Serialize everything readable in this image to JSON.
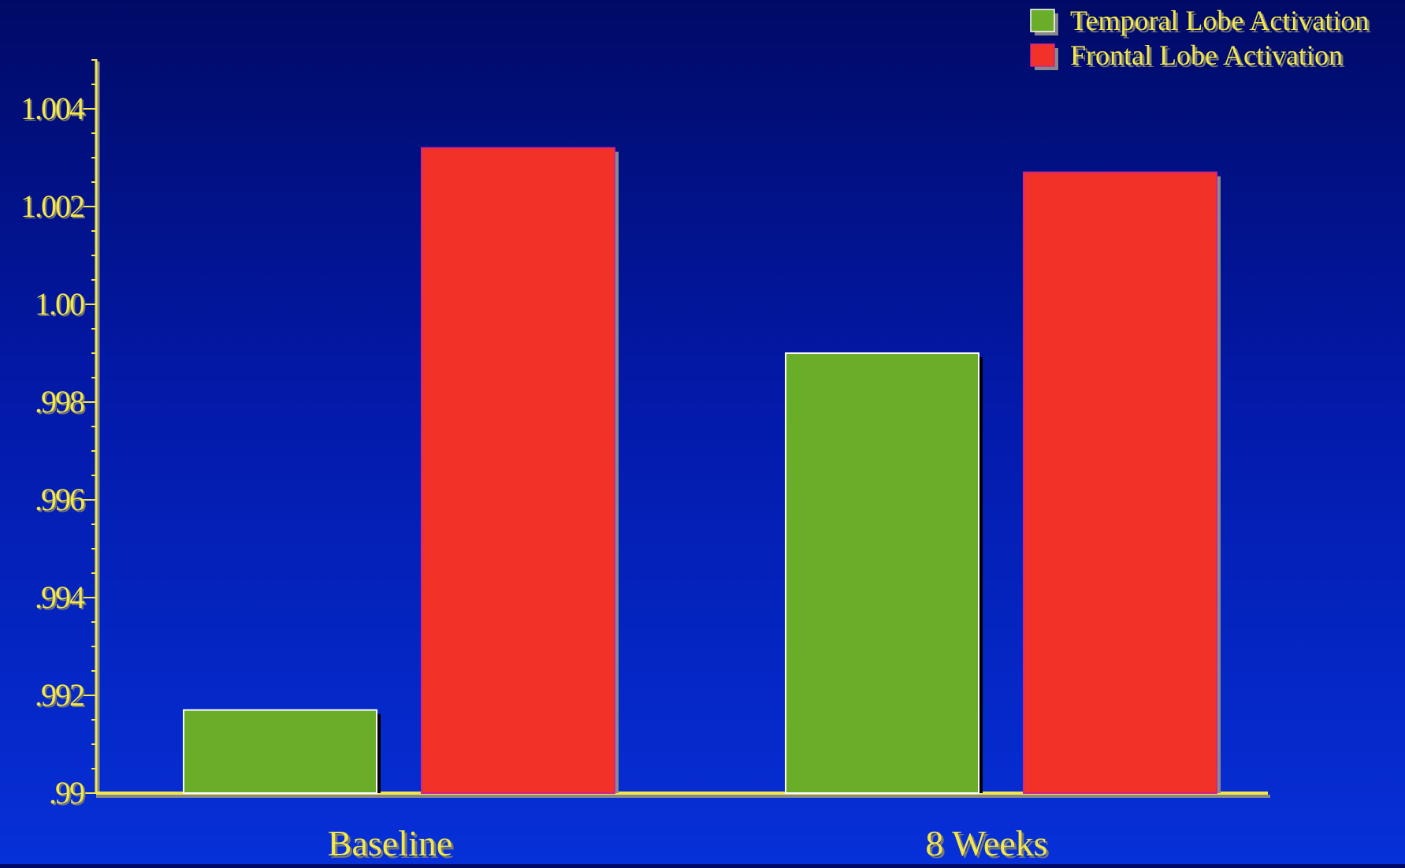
{
  "chart_data": {
    "type": "bar",
    "title": "",
    "xlabel": "",
    "ylabel": "",
    "categories": [
      "Baseline",
      "8 Weeks"
    ],
    "series": [
      {
        "name": "Temporal Lobe Activation",
        "color": "#6aad28",
        "values": [
          0.9917,
          0.999
        ]
      },
      {
        "name": "Frontal Lobe Activation",
        "color": "#f23128",
        "values": [
          1.0032,
          1.0027
        ]
      }
    ],
    "ylim": [
      0.99,
      1.005
    ],
    "y_ticks": [
      {
        "value": 0.99,
        "label": ".99"
      },
      {
        "value": 0.992,
        "label": ".992"
      },
      {
        "value": 0.994,
        "label": ".994"
      },
      {
        "value": 0.996,
        "label": ".996"
      },
      {
        "value": 0.998,
        "label": ".998"
      },
      {
        "value": 1.0,
        "label": "1.00"
      },
      {
        "value": 1.002,
        "label": "1.002"
      },
      {
        "value": 1.004,
        "label": "1.004"
      }
    ],
    "minor_tick_step": 0.0005,
    "grid": false,
    "legend_position": "top-right",
    "text_color": "#f2e84a",
    "axis_color": "#f2e84a",
    "background_colors": [
      "#000a66",
      "#0630d8"
    ]
  }
}
